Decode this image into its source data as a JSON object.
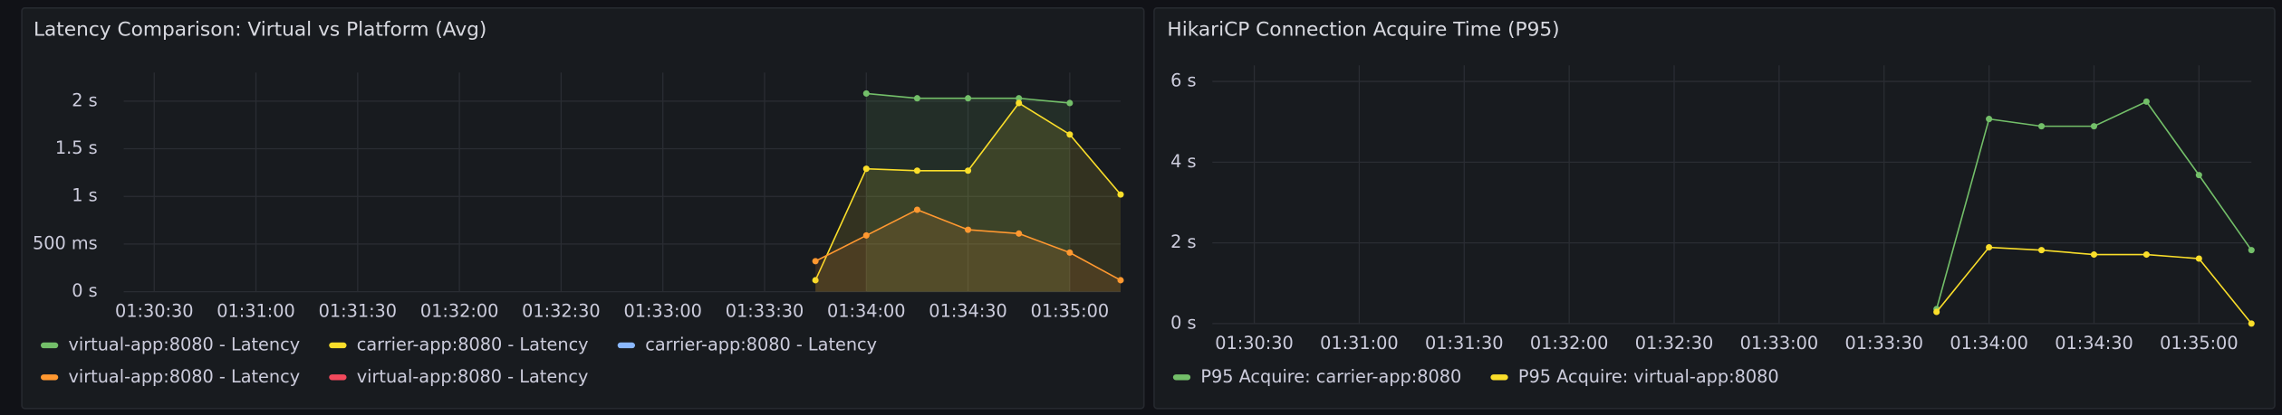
{
  "chart_data": [
    {
      "type": "line",
      "title": "Latency Comparison: Virtual vs Platform (Avg)",
      "x": [
        "01:33:45",
        "01:34:00",
        "01:34:15",
        "01:34:30",
        "01:34:45",
        "01:35:00",
        "01:35:15"
      ],
      "xlim": [
        "01:30:21",
        "01:35:15"
      ],
      "xticks": [
        "01:30:30",
        "01:31:00",
        "01:31:30",
        "01:32:00",
        "01:32:30",
        "01:33:00",
        "01:33:30",
        "01:34:00",
        "01:34:30",
        "01:35:00"
      ],
      "ylim": [
        0,
        2.3
      ],
      "yticks": [
        {
          "value": 0,
          "label": "0 s"
        },
        {
          "value": 0.5,
          "label": "500 ms"
        },
        {
          "value": 1,
          "label": "1 s"
        },
        {
          "value": 1.5,
          "label": "1.5 s"
        },
        {
          "value": 2,
          "label": "2 s"
        }
      ],
      "grid": true,
      "area": true,
      "series": [
        {
          "name": "virtual-app:8080 - Latency",
          "color": "#73bf69",
          "values": [
            null,
            2.08,
            2.03,
            2.03,
            2.03,
            1.98,
            null
          ]
        },
        {
          "name": "carrier-app:8080 - Latency",
          "color": "#fade2a",
          "values": [
            0.12,
            1.29,
            1.27,
            1.27,
            1.98,
            1.65,
            1.02
          ]
        },
        {
          "name": "carrier-app:8080 - Latency",
          "color": "#8ab8ff",
          "values": [
            null,
            null,
            null,
            null,
            null,
            null,
            null
          ]
        },
        {
          "name": "virtual-app:8080 - Latency",
          "color": "#ff9830",
          "values": [
            0.32,
            0.59,
            0.86,
            0.65,
            0.61,
            0.41,
            0.12
          ]
        },
        {
          "name": "virtual-app:8080 - Latency",
          "color": "#f2495c",
          "values": [
            null,
            null,
            null,
            null,
            null,
            null,
            null
          ]
        }
      ]
    },
    {
      "type": "line",
      "title": "HikariCP Connection Acquire Time (P95)",
      "x": [
        "01:33:45",
        "01:34:00",
        "01:34:15",
        "01:34:30",
        "01:34:45",
        "01:35:00",
        "01:35:15"
      ],
      "xlim": [
        "01:30:18",
        "01:35:15"
      ],
      "xticks": [
        "01:30:30",
        "01:31:00",
        "01:31:30",
        "01:32:00",
        "01:32:30",
        "01:33:00",
        "01:33:30",
        "01:34:00",
        "01:34:30",
        "01:35:00"
      ],
      "ylim": [
        0,
        6.4
      ],
      "yticks": [
        {
          "value": 0,
          "label": "0 s"
        },
        {
          "value": 2,
          "label": "2 s"
        },
        {
          "value": 4,
          "label": "4 s"
        },
        {
          "value": 6,
          "label": "6 s"
        }
      ],
      "grid": true,
      "area": false,
      "series": [
        {
          "name": "P95 Acquire: carrier-app:8080",
          "color": "#73bf69",
          "values": [
            0.36,
            5.07,
            4.89,
            4.89,
            5.5,
            3.68,
            1.82
          ]
        },
        {
          "name": "P95 Acquire: virtual-app:8080",
          "color": "#fade2a",
          "values": [
            0.29,
            1.89,
            1.82,
            1.71,
            1.71,
            1.61,
            0
          ]
        }
      ]
    }
  ]
}
